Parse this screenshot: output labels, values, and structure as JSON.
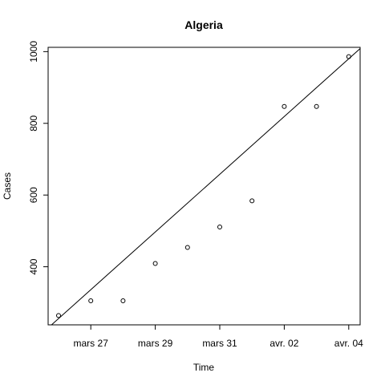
{
  "chart_data": {
    "type": "scatter",
    "title": "Algeria",
    "xlabel": "Time",
    "ylabel": "Cases",
    "x": [
      "2020-03-26",
      "2020-03-27",
      "2020-03-28",
      "2020-03-29",
      "2020-03-30",
      "2020-03-31",
      "2020-04-01",
      "2020-04-02",
      "2020-04-03",
      "2020-04-04"
    ],
    "y": [
      264,
      305,
      305,
      409,
      454,
      511,
      584,
      847,
      847,
      986
    ],
    "xticks": [
      {
        "date": "2020-03-27",
        "label": "mars 27"
      },
      {
        "date": "2020-03-29",
        "label": "mars 29"
      },
      {
        "date": "2020-03-31",
        "label": "mars 31"
      },
      {
        "date": "2020-04-02",
        "label": "avr. 02"
      },
      {
        "date": "2020-04-04",
        "label": "avr. 04"
      }
    ],
    "yticks": [
      400,
      600,
      800,
      1000
    ],
    "xlim": [
      "2020-03-25",
      "2020-04-04"
    ],
    "ylim": [
      238,
      1012
    ],
    "trend_line": {
      "type": "linear-fit",
      "start": [
        "2020-03-25",
        175
      ],
      "end": [
        "2020-04-04",
        980
      ]
    },
    "grid": false,
    "marker": "open-circle",
    "colors": {
      "points": "#000000",
      "line": "#000000",
      "axes": "#000000"
    }
  }
}
